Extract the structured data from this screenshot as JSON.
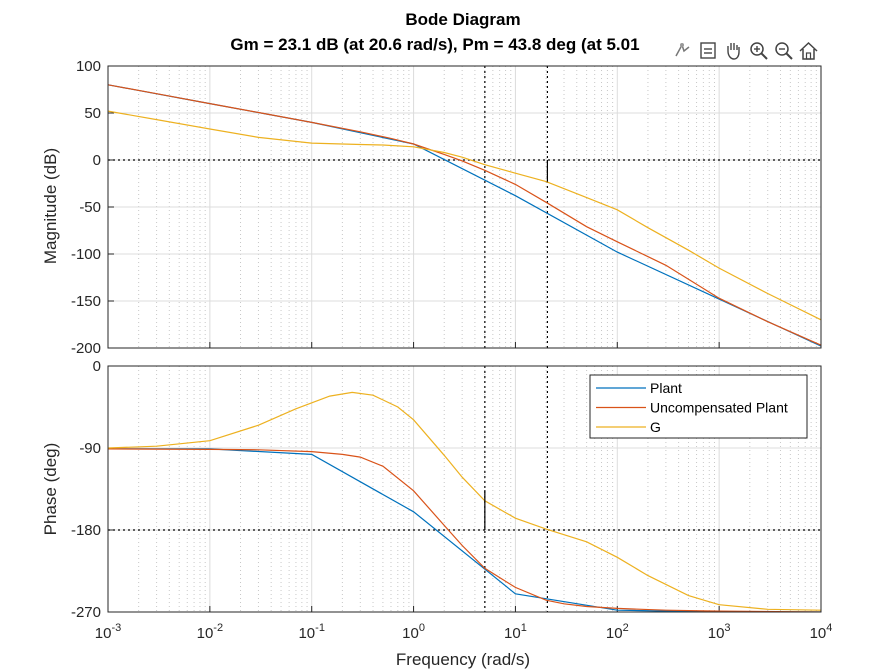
{
  "chart_data": {
    "type": "line",
    "title": "Bode Diagram",
    "subtitle": "Gm = 23.1 dB (at 20.6 rad/s),  Pm = 43.8 deg (at 5.01",
    "xlabel": "Frequency  (rad/s)",
    "x_scale": "log",
    "x_range": [
      0.001,
      10000
    ],
    "x_ticks": [
      {
        "value": 0.001,
        "base": "10",
        "exp": "-3"
      },
      {
        "value": 0.01,
        "base": "10",
        "exp": "-2"
      },
      {
        "value": 0.1,
        "base": "10",
        "exp": "-1"
      },
      {
        "value": 1,
        "base": "10",
        "exp": "0"
      },
      {
        "value": 10,
        "base": "10",
        "exp": "1"
      },
      {
        "value": 100,
        "base": "10",
        "exp": "2"
      },
      {
        "value": 1000,
        "base": "10",
        "exp": "3"
      },
      {
        "value": 10000,
        "base": "10",
        "exp": "4"
      }
    ],
    "grid": true,
    "legend_position": "top-right (phase panel)",
    "colors": {
      "Plant": "#0072BD",
      "Uncompensated Plant": "#D95319",
      "G": "#EDB120"
    },
    "margins": {
      "gain_margin_db": 23.1,
      "gain_crossover_phase_freq": 20.6,
      "phase_margin_deg": 43.8,
      "phase_crossover_freq": 5.01
    },
    "magnitude": {
      "ylabel": "Magnitude (dB)",
      "ylim": [
        -200,
        100
      ],
      "yticks": [
        100,
        50,
        0,
        -50,
        -100,
        -150,
        -200
      ],
      "series": [
        {
          "name": "Plant",
          "x": [
            0.001,
            0.01,
            0.1,
            1,
            10,
            100,
            1000,
            10000
          ],
          "y": [
            80,
            60,
            40,
            17,
            -38,
            -98,
            -148,
            -198
          ]
        },
        {
          "name": "Uncompensated Plant",
          "x": [
            0.001,
            0.003,
            0.01,
            0.03,
            0.1,
            0.3,
            0.6,
            1,
            2,
            3,
            5,
            10,
            20,
            50,
            100,
            300,
            1000,
            3000,
            10000
          ],
          "y": [
            80,
            70.5,
            60,
            50.5,
            40,
            30,
            23,
            17,
            6,
            -1,
            -11,
            -26,
            -45,
            -71,
            -87,
            -112,
            -147,
            -172,
            -197
          ]
        },
        {
          "name": "G",
          "x": [
            0.001,
            0.003,
            0.01,
            0.03,
            0.1,
            0.2,
            0.3,
            0.5,
            1,
            2,
            3,
            5,
            10,
            20,
            50,
            100,
            200,
            500,
            1000,
            3000,
            10000
          ],
          "y": [
            52,
            43,
            33,
            24,
            18,
            17,
            16.5,
            16,
            14,
            8,
            3,
            -5,
            -14,
            -23,
            -40,
            -53,
            -72,
            -96,
            -115,
            -142,
            -170
          ]
        }
      ]
    },
    "phase": {
      "ylabel": "Phase (deg)",
      "ylim": [
        -270,
        0
      ],
      "yticks": [
        0,
        -90,
        -180,
        -270
      ],
      "series": [
        {
          "name": "Plant",
          "x": [
            0.001,
            0.01,
            0.1,
            1,
            10,
            100,
            1000,
            10000
          ],
          "y": [
            -91,
            -91,
            -97,
            -160,
            -250,
            -268,
            -270,
            -270
          ]
        },
        {
          "name": "Uncompensated Plant",
          "x": [
            0.001,
            0.01,
            0.03,
            0.1,
            0.2,
            0.3,
            0.5,
            1,
            2,
            3,
            5,
            10,
            20,
            30,
            50,
            100,
            300,
            1000,
            10000
          ],
          "y": [
            -91,
            -91.5,
            -92,
            -94,
            -97,
            -100,
            -110,
            -137,
            -175,
            -197,
            -222,
            -243,
            -257,
            -261,
            -264,
            -266,
            -268,
            -269,
            -270
          ]
        },
        {
          "name": "G",
          "x": [
            0.001,
            0.003,
            0.01,
            0.03,
            0.07,
            0.15,
            0.25,
            0.4,
            0.7,
            1,
            2,
            3,
            5,
            10,
            20,
            50,
            100,
            200,
            500,
            1000,
            3000,
            10000
          ],
          "y": [
            -90,
            -88,
            -82,
            -65,
            -47,
            -33,
            -29,
            -32,
            -45,
            -59,
            -98,
            -122,
            -148,
            -167,
            -179,
            -193,
            -210,
            -230,
            -252,
            -262,
            -267,
            -268
          ]
        }
      ]
    },
    "legend": [
      "Plant",
      "Uncompensated Plant",
      "G"
    ]
  },
  "toolbar": [
    {
      "name": "data-tips-icon"
    },
    {
      "name": "export-icon"
    },
    {
      "name": "pan-icon"
    },
    {
      "name": "zoom-in-icon"
    },
    {
      "name": "zoom-out-icon"
    },
    {
      "name": "home-icon"
    }
  ]
}
